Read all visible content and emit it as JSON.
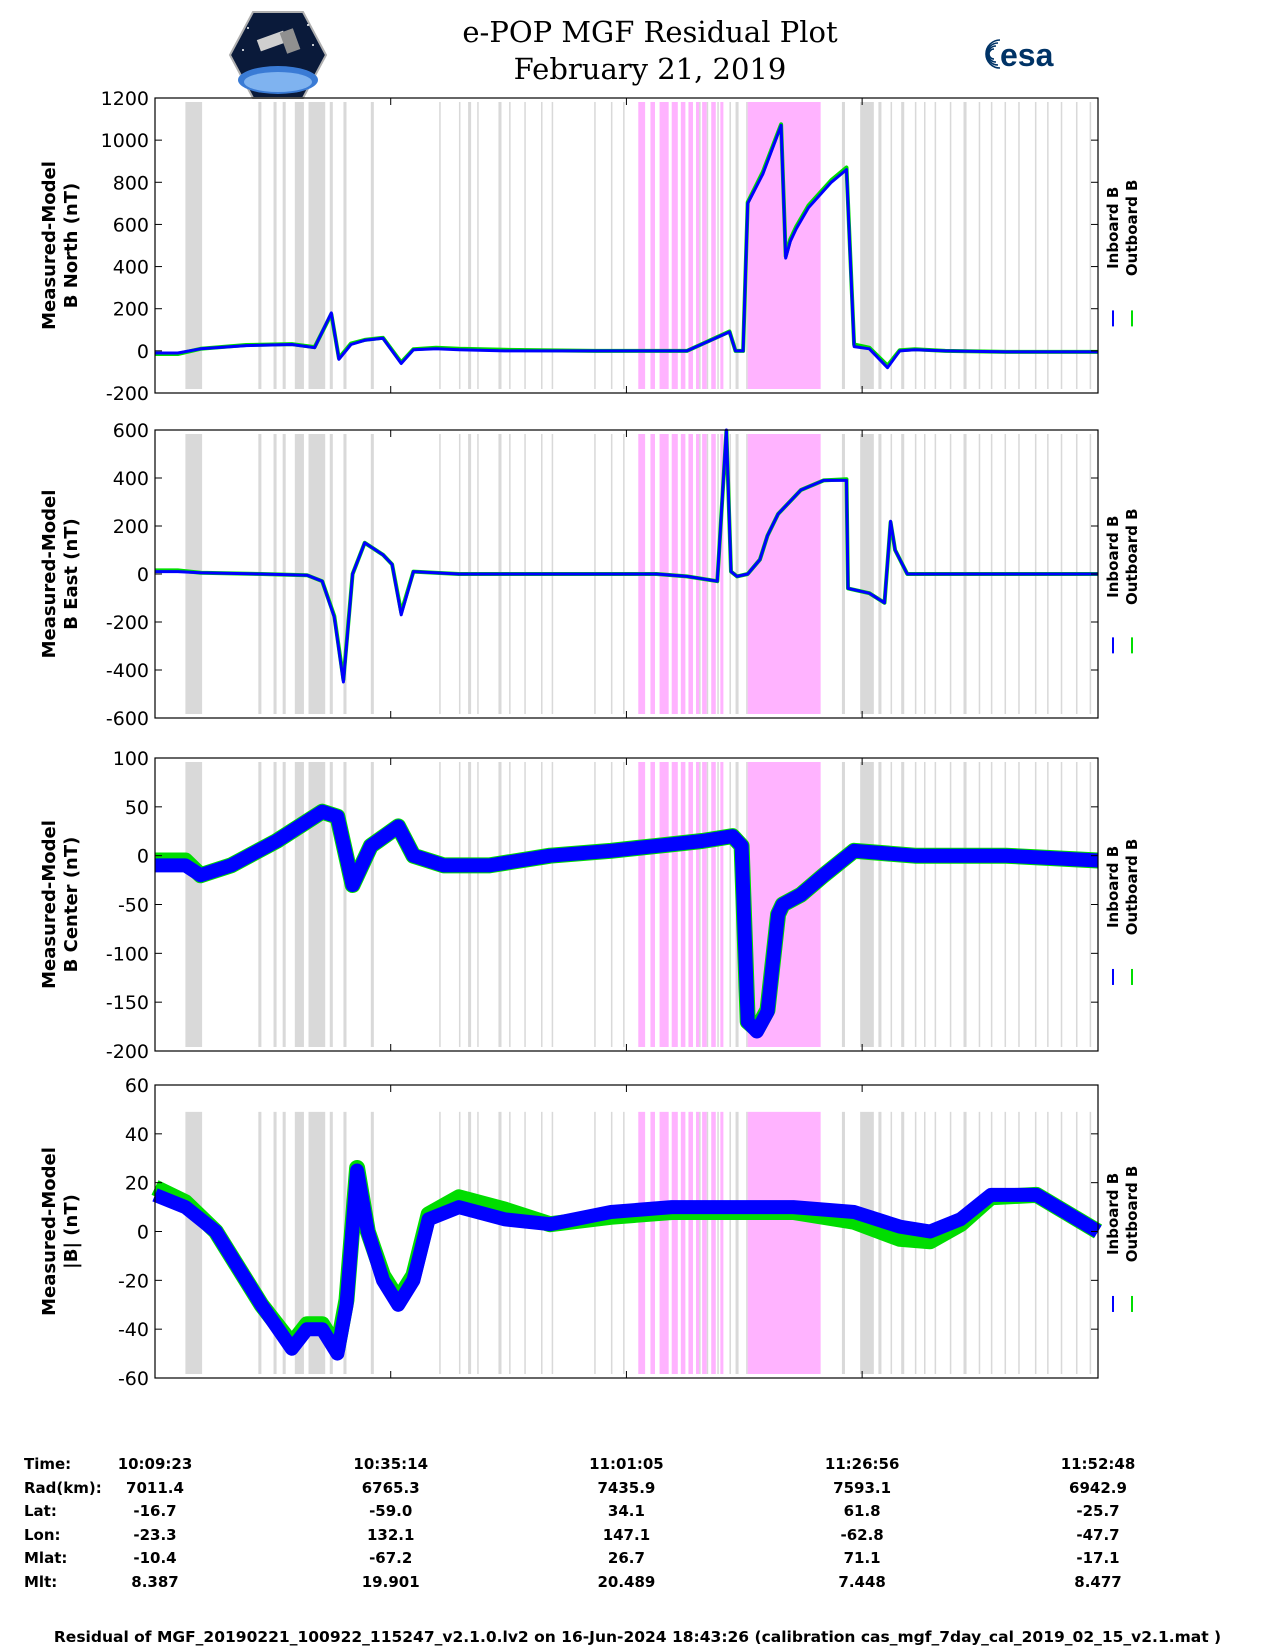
{
  "title_line1": "e-POP MGF Residual Plot",
  "title_line2": "February 21, 2019",
  "logos": {
    "left": "cassiope-mission-logo",
    "right_text": "esa",
    "right_color": "#003366"
  },
  "colors": {
    "inboard": "#0000ff",
    "outboard": "#00dd00",
    "gray_band": "#d9d9d9",
    "pink_band": "#ffb3ff"
  },
  "legend": {
    "inboard": "Inboard B",
    "outboard": "Outboard B"
  },
  "chart_data": [
    {
      "type": "line",
      "ylabel": [
        "Measured-Model",
        "B North (nT)"
      ],
      "ylim": [
        -200,
        1200
      ],
      "yticks": [
        "1200",
        "1000",
        "800",
        "600",
        "400",
        "200",
        "0",
        "-200"
      ],
      "ytick_values": [
        1200,
        1000,
        800,
        600,
        400,
        200,
        0,
        -200
      ],
      "xlim": [
        0,
        6205
      ],
      "series": [
        {
          "name": "Inboard B",
          "x": [
            0,
            150,
            300,
            600,
            900,
            1050,
            1160,
            1210,
            1290,
            1380,
            1500,
            1620,
            1700,
            1850,
            2000,
            2300,
            2600,
            2900,
            3200,
            3500,
            3780,
            3820,
            3850,
            3870,
            3900,
            4000,
            4120,
            4150,
            4180,
            4220,
            4300,
            4450,
            4550,
            4600,
            4700,
            4820,
            4900,
            5000,
            5200,
            5600,
            6205
          ],
          "values": [
            -10,
            -10,
            10,
            25,
            30,
            15,
            180,
            -40,
            30,
            50,
            60,
            -60,
            5,
            10,
            5,
            0,
            0,
            0,
            0,
            0,
            90,
            0,
            0,
            0,
            700,
            840,
            1070,
            440,
            520,
            580,
            680,
            800,
            860,
            20,
            10,
            -80,
            0,
            5,
            0,
            -5,
            -5
          ]
        },
        {
          "name": "Outboard B",
          "x": [
            0,
            150,
            300,
            600,
            900,
            1050,
            1160,
            1210,
            1290,
            1380,
            1500,
            1620,
            1700,
            1850,
            2000,
            2300,
            2600,
            2900,
            3200,
            3500,
            3780,
            3820,
            3850,
            3870,
            3900,
            4000,
            4120,
            4150,
            4180,
            4220,
            4300,
            4450,
            4550,
            4600,
            4700,
            4820,
            4900,
            5000,
            5200,
            5600,
            6205
          ],
          "values": [
            -15,
            -15,
            10,
            28,
            32,
            18,
            175,
            -35,
            35,
            52,
            62,
            -55,
            8,
            15,
            10,
            5,
            2,
            0,
            0,
            0,
            92,
            0,
            0,
            0,
            705,
            850,
            1075,
            450,
            530,
            590,
            690,
            810,
            870,
            30,
            15,
            -70,
            3,
            8,
            0,
            -5,
            -5
          ]
        }
      ]
    },
    {
      "type": "line",
      "ylabel": [
        "Measured-Model",
        "B East (nT)"
      ],
      "ylim": [
        -600,
        600
      ],
      "yticks": [
        "600",
        "400",
        "200",
        "0",
        "-200",
        "-400",
        "-600"
      ],
      "ytick_values": [
        600,
        400,
        200,
        0,
        -200,
        -400,
        -600
      ],
      "xlim": [
        0,
        6205
      ],
      "series": [
        {
          "name": "Inboard B",
          "x": [
            0,
            150,
            300,
            700,
            1000,
            1100,
            1180,
            1240,
            1300,
            1380,
            1500,
            1560,
            1620,
            1700,
            2000,
            2600,
            3000,
            3300,
            3500,
            3700,
            3760,
            3790,
            3830,
            3900,
            3980,
            4030,
            4100,
            4250,
            4400,
            4550,
            4560,
            4700,
            4800,
            4840,
            4870,
            4950,
            5100,
            5600,
            6205
          ],
          "values": [
            10,
            10,
            5,
            0,
            -5,
            -30,
            -180,
            -450,
            0,
            130,
            80,
            40,
            -170,
            10,
            0,
            0,
            0,
            0,
            -10,
            -30,
            600,
            10,
            -10,
            0,
            60,
            160,
            250,
            350,
            390,
            390,
            -60,
            -80,
            -120,
            220,
            100,
            0,
            0,
            0,
            0
          ]
        },
        {
          "name": "Outboard B",
          "x": [
            0,
            150,
            300,
            700,
            1000,
            1100,
            1180,
            1240,
            1300,
            1380,
            1500,
            1560,
            1620,
            1700,
            2000,
            2600,
            3000,
            3300,
            3500,
            3700,
            3760,
            3790,
            3830,
            3900,
            3980,
            4030,
            4100,
            4250,
            4400,
            4550,
            4560,
            4700,
            4800,
            4840,
            4870,
            4950,
            5100,
            5600,
            6205
          ],
          "values": [
            15,
            15,
            5,
            0,
            -5,
            -30,
            -175,
            -440,
            0,
            130,
            80,
            40,
            -160,
            10,
            0,
            0,
            0,
            0,
            -10,
            -30,
            595,
            10,
            -10,
            0,
            60,
            160,
            250,
            350,
            390,
            395,
            -60,
            -80,
            -120,
            215,
            100,
            0,
            0,
            0,
            0
          ]
        }
      ]
    },
    {
      "type": "line",
      "ylabel": [
        "Measured-Model",
        "B Center (nT)"
      ],
      "ylim": [
        -200,
        100
      ],
      "yticks": [
        "100",
        "50",
        "0",
        "-50",
        "-100",
        "-150",
        "-200"
      ],
      "ytick_values": [
        100,
        50,
        0,
        -50,
        -100,
        -150,
        -200
      ],
      "xlim": [
        0,
        6205
      ],
      "series": [
        {
          "name": "Inboard B",
          "x": [
            0,
            200,
            300,
            500,
            800,
            1100,
            1200,
            1300,
            1420,
            1600,
            1700,
            1900,
            2200,
            2600,
            3000,
            3300,
            3600,
            3800,
            3860,
            3900,
            3960,
            4030,
            4100,
            4130,
            4250,
            4400,
            4600,
            5000,
            5600,
            6205
          ],
          "values": [
            -10,
            -10,
            -20,
            -10,
            15,
            45,
            40,
            -30,
            10,
            30,
            0,
            -10,
            -10,
            0,
            5,
            10,
            15,
            20,
            10,
            -170,
            -180,
            -160,
            -60,
            -50,
            -40,
            -20,
            5,
            0,
            0,
            -5
          ]
        },
        {
          "name": "Outboard B",
          "x": [
            0,
            200,
            300,
            500,
            800,
            1100,
            1200,
            1300,
            1420,
            1600,
            1700,
            1900,
            2200,
            2600,
            3000,
            3300,
            3600,
            3800,
            3860,
            3900,
            3960,
            4030,
            4100,
            4130,
            4250,
            4400,
            4600,
            5000,
            5600,
            6205
          ],
          "values": [
            -5,
            -5,
            -20,
            -10,
            15,
            45,
            40,
            -30,
            10,
            30,
            0,
            -10,
            -10,
            0,
            5,
            10,
            15,
            20,
            10,
            -170,
            -178,
            -158,
            -60,
            -50,
            -40,
            -20,
            5,
            0,
            0,
            -5
          ]
        }
      ]
    },
    {
      "type": "line",
      "ylabel": [
        "Measured-Model",
        "|B| (nT)"
      ],
      "ylim": [
        -60,
        60
      ],
      "yticks": [
        "60",
        "40",
        "20",
        "0",
        "-20",
        "-40",
        "-60"
      ],
      "ytick_values": [
        60,
        40,
        20,
        0,
        -20,
        -40,
        -60
      ],
      "xlim": [
        0,
        6205
      ],
      "series": [
        {
          "name": "Inboard B",
          "x": [
            0,
            200,
            400,
            700,
            900,
            1000,
            1100,
            1200,
            1260,
            1330,
            1400,
            1500,
            1600,
            1700,
            1800,
            2000,
            2300,
            2600,
            3000,
            3400,
            3800,
            4200,
            4600,
            4900,
            5100,
            5300,
            5500,
            5800,
            6205
          ],
          "values": [
            15,
            10,
            0,
            -30,
            -48,
            -40,
            -40,
            -50,
            -30,
            25,
            0,
            -20,
            -30,
            -20,
            5,
            10,
            5,
            3,
            8,
            10,
            10,
            10,
            8,
            2,
            0,
            5,
            15,
            15,
            0
          ]
        },
        {
          "name": "Outboard B",
          "x": [
            0,
            200,
            400,
            700,
            900,
            1000,
            1100,
            1200,
            1260,
            1330,
            1400,
            1500,
            1600,
            1700,
            1800,
            2000,
            2300,
            2600,
            3000,
            3400,
            3800,
            4200,
            4600,
            4900,
            5100,
            5300,
            5500,
            5800,
            6205
          ],
          "values": [
            18,
            12,
            0,
            -30,
            -46,
            -38,
            -38,
            -48,
            -28,
            26,
            0,
            -18,
            -28,
            -18,
            7,
            14,
            9,
            3,
            6,
            8,
            8,
            8,
            4,
            -3,
            -4,
            3,
            14,
            15,
            0
          ]
        }
      ]
    }
  ],
  "xaxis": {
    "tick_values": [
      0,
      1551,
      3102,
      4653,
      6205
    ],
    "labels": [
      "Time:",
      "Rad(km):",
      "Lat:",
      "Lon:",
      "Mlat:",
      "Mlt:"
    ],
    "columns": [
      [
        "10:09:23",
        "7011.4",
        "-16.7",
        "-23.3",
        "-10.4",
        "8.387"
      ],
      [
        "10:35:14",
        "6765.3",
        "-59.0",
        "132.1",
        "-67.2",
        "19.901"
      ],
      [
        "11:01:05",
        "7435.9",
        "34.1",
        "147.1",
        "26.7",
        "20.489"
      ],
      [
        "11:26:56",
        "7593.1",
        "61.8",
        "-62.8",
        "71.1",
        "7.448"
      ],
      [
        "11:52:48",
        "6942.9",
        "-25.7",
        "-47.7",
        "-17.1",
        "8.477"
      ]
    ]
  },
  "bands": {
    "gray": [
      [
        200,
        310
      ],
      [
        680,
        700
      ],
      [
        780,
        800
      ],
      [
        840,
        860
      ],
      [
        920,
        980
      ],
      [
        1010,
        1120
      ],
      [
        1150,
        1170
      ],
      [
        1240,
        1260
      ],
      [
        1420,
        1440
      ],
      [
        1870,
        1880
      ],
      [
        2000,
        2010
      ],
      [
        2060,
        2080
      ],
      [
        2120,
        2130
      ],
      [
        2260,
        2280
      ],
      [
        2330,
        2340
      ],
      [
        2430,
        2440
      ],
      [
        2540,
        2550
      ],
      [
        2610,
        2620
      ],
      [
        2890,
        2900
      ],
      [
        3000,
        3010
      ],
      [
        3080,
        3090
      ],
      [
        3520,
        3530
      ],
      [
        3580,
        3590
      ],
      [
        3630,
        3640
      ],
      [
        3700,
        3710
      ],
      [
        3780,
        3790
      ],
      [
        3820,
        3840
      ],
      [
        3890,
        3900
      ],
      [
        4520,
        4540
      ],
      [
        4640,
        4730
      ],
      [
        4760,
        4780
      ],
      [
        4840,
        4850
      ],
      [
        4910,
        4930
      ],
      [
        5000,
        5010
      ],
      [
        5060,
        5070
      ],
      [
        5130,
        5140
      ],
      [
        5230,
        5240
      ],
      [
        5320,
        5340
      ],
      [
        5420,
        5430
      ],
      [
        5500,
        5510
      ],
      [
        5590,
        5600
      ],
      [
        5680,
        5690
      ],
      [
        5790,
        5800
      ],
      [
        5870,
        5880
      ],
      [
        5960,
        5970
      ],
      [
        6060,
        6070
      ],
      [
        6150,
        6160
      ]
    ],
    "pink": [
      [
        3180,
        3225
      ],
      [
        3260,
        3290
      ],
      [
        3320,
        3380
      ],
      [
        3400,
        3440
      ],
      [
        3460,
        3490
      ],
      [
        3510,
        3540
      ],
      [
        3560,
        3580
      ],
      [
        3600,
        3630
      ],
      [
        3660,
        3690
      ],
      [
        3720,
        3740
      ],
      [
        3900,
        4380
      ]
    ]
  },
  "footer": "Residual of MGF_20190221_100922_115247_v2.1.0.lv2 on 16-Jun-2024 18:43:26 (calibration cas_mgf_7day_cal_2019_02_15_v2.1.mat )"
}
